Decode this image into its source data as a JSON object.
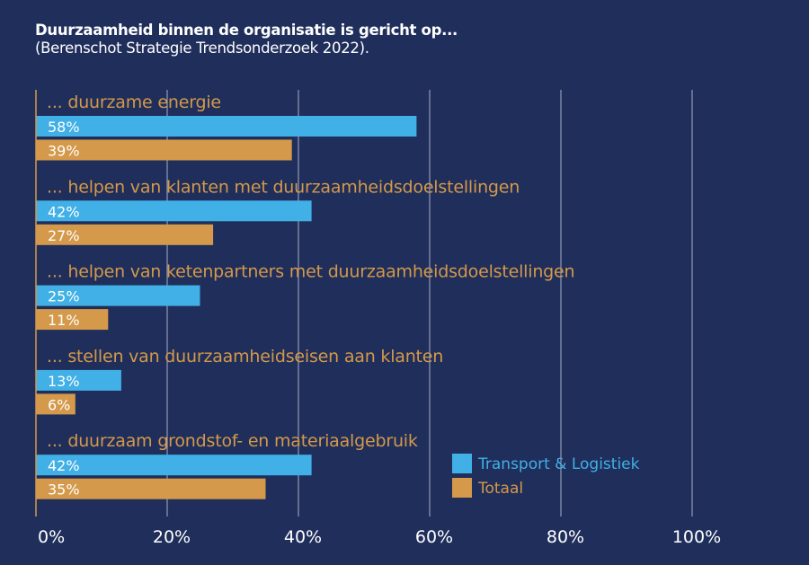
{
  "chart_data": {
    "type": "bar",
    "orientation": "horizontal",
    "title": "Duurzaamheid binnen de organisatie is gericht op...",
    "subtitle": "(Berenschot Strategie Trendsonderzoek 2022).",
    "categories": [
      "... duurzame energie",
      "... helpen van klanten met duurzaamheidsdoelstellingen",
      "... helpen van ketenpartners met duurzaamheidsdoelstellingen",
      "... stellen van duurzaamheidseisen aan klanten",
      "... duurzaam grondstof- en materiaalgebruik"
    ],
    "series": [
      {
        "name": "Transport & Logistiek",
        "color": "#41b0e6",
        "values": [
          58,
          42,
          25,
          13,
          42
        ]
      },
      {
        "name": "Totaal",
        "color": "#d4994a",
        "values": [
          39,
          27,
          11,
          6,
          35
        ]
      }
    ],
    "value_format": "{v}%",
    "xlim": [
      0,
      100
    ],
    "xticks": [
      0,
      20,
      40,
      60,
      80,
      100
    ],
    "xtick_labels": [
      "0%",
      "20%",
      "40%",
      "60%",
      "80%",
      "100%"
    ],
    "grid": true,
    "legend": "bottom-right",
    "category_label_color": "#d4994a",
    "background": "#1f2e5b"
  }
}
